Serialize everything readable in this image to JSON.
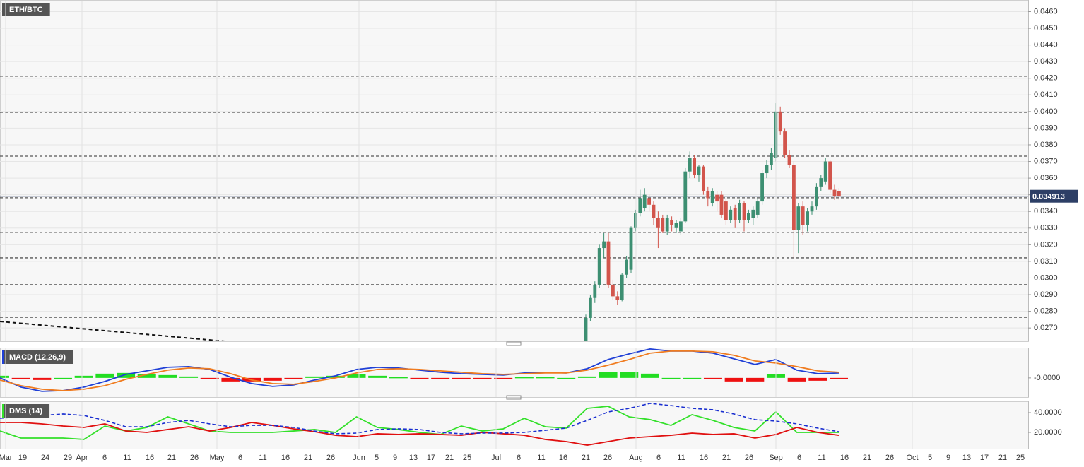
{
  "chart_data": [
    {
      "type": "candlestick",
      "title": "ETH/BTC",
      "up_color": "#3d8f72",
      "down_color": "#d2554c",
      "candles": [
        [
          0.0258,
          0.0278,
          0.0256,
          0.0276
        ],
        [
          0.0276,
          0.029,
          0.0274,
          0.0288
        ],
        [
          0.0288,
          0.0298,
          0.0285,
          0.0296
        ],
        [
          0.0296,
          0.032,
          0.0294,
          0.0318
        ],
        [
          0.0318,
          0.0327,
          0.0312,
          0.0322
        ],
        [
          0.0322,
          0.0327,
          0.0294,
          0.0296
        ],
        [
          0.0296,
          0.0299,
          0.0287,
          0.0289
        ],
        [
          0.0289,
          0.0292,
          0.0284,
          0.0287
        ],
        [
          0.0287,
          0.0303,
          0.0286,
          0.0302
        ],
        [
          0.0302,
          0.0313,
          0.03,
          0.0311
        ],
        [
          0.0305,
          0.0331,
          0.0303,
          0.033
        ],
        [
          0.033,
          0.0341,
          0.0328,
          0.0339
        ],
        [
          0.0339,
          0.0353,
          0.0337,
          0.0348
        ],
        [
          0.0342,
          0.0354,
          0.034,
          0.035
        ],
        [
          0.0348,
          0.035,
          0.034,
          0.0344
        ],
        [
          0.0344,
          0.0346,
          0.0332,
          0.0336
        ],
        [
          0.0336,
          0.034,
          0.0318,
          0.033
        ],
        [
          0.0336,
          0.0338,
          0.0327,
          0.0328
        ],
        [
          0.0328,
          0.0338,
          0.0326,
          0.0336
        ],
        [
          0.0335,
          0.0337,
          0.0328,
          0.0332
        ],
        [
          0.033,
          0.0335,
          0.0327,
          0.0333
        ],
        [
          0.0328,
          0.0336,
          0.0326,
          0.0334
        ],
        [
          0.0334,
          0.0366,
          0.0333,
          0.0364
        ],
        [
          0.0364,
          0.0376,
          0.036,
          0.0372
        ],
        [
          0.0372,
          0.0374,
          0.036,
          0.0362
        ],
        [
          0.0362,
          0.0368,
          0.0358,
          0.0367
        ],
        [
          0.0367,
          0.0368,
          0.035,
          0.0352
        ],
        [
          0.0352,
          0.0355,
          0.0343,
          0.0348
        ],
        [
          0.0345,
          0.0354,
          0.0343,
          0.0352
        ],
        [
          0.035,
          0.0352,
          0.034,
          0.0346
        ],
        [
          0.035,
          0.0352,
          0.0336,
          0.0338
        ],
        [
          0.0346,
          0.0348,
          0.0332,
          0.0335
        ],
        [
          0.0335,
          0.0343,
          0.0333,
          0.0341
        ],
        [
          0.0342,
          0.0344,
          0.033,
          0.0335
        ],
        [
          0.0335,
          0.0347,
          0.0333,
          0.0345
        ],
        [
          0.0345,
          0.0346,
          0.0328,
          0.0335
        ],
        [
          0.0335,
          0.0341,
          0.0333,
          0.0339
        ],
        [
          0.0336,
          0.0343,
          0.0332,
          0.0341
        ],
        [
          0.0338,
          0.0348,
          0.0336,
          0.0346
        ],
        [
          0.0346,
          0.0365,
          0.0344,
          0.0363
        ],
        [
          0.0363,
          0.0371,
          0.036,
          0.0368
        ],
        [
          0.0368,
          0.0378,
          0.0365,
          0.0375
        ],
        [
          0.0372,
          0.0405,
          0.037,
          0.04
        ],
        [
          0.04,
          0.0403,
          0.0386,
          0.0388
        ],
        [
          0.0388,
          0.039,
          0.0372,
          0.0374
        ],
        [
          0.0374,
          0.0377,
          0.0366,
          0.0368
        ],
        [
          0.0368,
          0.037,
          0.0312,
          0.0329
        ],
        [
          0.0329,
          0.0345,
          0.0315,
          0.0343
        ],
        [
          0.0343,
          0.0346,
          0.0326,
          0.0332
        ],
        [
          0.0332,
          0.0342,
          0.0328,
          0.034
        ],
        [
          0.034,
          0.0346,
          0.0338,
          0.0343
        ],
        [
          0.0343,
          0.0357,
          0.0341,
          0.0355
        ],
        [
          0.0355,
          0.0362,
          0.0352,
          0.036
        ],
        [
          0.0358,
          0.0372,
          0.0356,
          0.037
        ],
        [
          0.037,
          0.0371,
          0.0351,
          0.0353
        ],
        [
          0.0353,
          0.0356,
          0.0347,
          0.0349
        ],
        [
          0.0352,
          0.0354,
          0.0347,
          0.0349
        ]
      ],
      "levels": [
        0.04212,
        0.03995,
        0.03732,
        0.03482,
        0.03274,
        0.03121,
        0.0296,
        0.02764
      ],
      "level_color": "#555555",
      "trend_line": [
        0.02739,
        0.0262
      ],
      "last_price": 0.034913,
      "last_price_color": "#2d3f66",
      "ylim": [
        0.0262,
        0.0467
      ],
      "yticks": [
        {
          "value": 0.046,
          "label": "0.0460"
        },
        {
          "value": 0.045,
          "label": "0.0450"
        },
        {
          "value": 0.044,
          "label": "0.0440"
        },
        {
          "value": 0.043,
          "label": "0.0430"
        },
        {
          "value": 0.042,
          "label": "0.0420"
        },
        {
          "value": 0.041,
          "label": "0.0410"
        },
        {
          "value": 0.04,
          "label": "0.0400"
        },
        {
          "value": 0.039,
          "label": "0.0390"
        },
        {
          "value": 0.038,
          "label": "0.0380"
        },
        {
          "value": 0.037,
          "label": "0.0370"
        },
        {
          "value": 0.036,
          "label": "0.0360"
        },
        {
          "value": 0.035,
          "label": "0.0350"
        },
        {
          "value": 0.034,
          "label": "0.0340"
        },
        {
          "value": 0.033,
          "label": "0.0330"
        },
        {
          "value": 0.032,
          "label": "0.0320"
        },
        {
          "value": 0.031,
          "label": "0.0310"
        },
        {
          "value": 0.03,
          "label": "0.0300"
        },
        {
          "value": 0.029,
          "label": "0.0290"
        },
        {
          "value": 0.028,
          "label": "0.0280"
        },
        {
          "value": 0.027,
          "label": "0.0270"
        }
      ],
      "grid": true
    },
    {
      "type": "line",
      "title": "MACD (12,26,9)",
      "title_accent": "#1f3fd6",
      "series": [
        {
          "color": "#1f3fd6",
          "values": [
            0,
            -0.000364,
            -0.000532,
            -0.000504,
            -0.000364,
            -0.00014,
            0.00014,
            0.00028,
            0.00042,
            0.000448,
            0.000336,
            2.8e-05,
            -0.000224,
            -0.000336,
            -0.00028,
            -8.4e-05,
            8.4e-05,
            0.000336,
            0.00042,
            0.000392,
            0.000308,
            0.000224,
            0.000168,
            0.00014,
            0.000112,
            0.000196,
            0.000224,
            0.000196,
            0.000364,
            0.000728,
            0.000952,
            0.001148,
            0.001064,
            0.001064,
            0.00098,
            0.000756,
            0.000532,
            0.000728,
            0.000308,
            0.000168,
            0.000196
          ]
        },
        {
          "color": "#f07c20",
          "values": [
            -8.4e-05,
            -0.000308,
            -0.000448,
            -0.000504,
            -0.000448,
            -0.000308,
            -5.6e-05,
            0.00014,
            0.000308,
            0.000392,
            0.000364,
            0.000168,
            -8.4e-05,
            -0.000224,
            -0.000252,
            -0.00014,
            0,
            0.000196,
            0.000336,
            0.000364,
            0.000336,
            0.00028,
            0.000224,
            0.000168,
            0.00014,
            0.000168,
            0.000196,
            0.000196,
            0.000308,
            0.000504,
            0.000728,
            0.00098,
            0.001064,
            0.001064,
            0.001036,
            0.000896,
            0.000672,
            0.000588,
            0.000448,
            0.00028,
            0.000224
          ]
        }
      ],
      "histogram": {
        "up_color": "#22dd22",
        "down_color": "#ee1111",
        "values": [
          8.4e-05,
          -5.6e-05,
          -8.4e-05,
          0,
          8.4e-05,
          0.000168,
          0.000196,
          0.00014,
          0.000112,
          5.6e-05,
          -2.8e-05,
          -0.00014,
          -0.00014,
          -0.000112,
          -2.8e-05,
          5.6e-05,
          8.4e-05,
          0.00014,
          8.4e-05,
          2.8e-05,
          -2.8e-05,
          -5.6e-05,
          -5.6e-05,
          -2.8e-05,
          -2.8e-05,
          2.8e-05,
          2.8e-05,
          0,
          5.6e-05,
          0.000224,
          0.000224,
          0.000168,
          0,
          0,
          -5.6e-05,
          -0.00014,
          -0.00014,
          0.00014,
          -0.00014,
          -0.000112,
          -2.8e-05
        ]
      },
      "ylim": [
        -0.00076,
        0.0012
      ],
      "yticks": [
        {
          "value": 0,
          "label": "-0.0000"
        }
      ],
      "grid": false
    },
    {
      "type": "line",
      "title": "DMS (14)",
      "title_accent": "#33e02a",
      "series": [
        {
          "color": "#33e02a",
          "values": [
            21.4,
            14.3,
            14.3,
            14.3,
            12.9,
            26.4,
            21.4,
            25.0,
            35.7,
            28.6,
            21.4,
            20.0,
            20.0,
            20.0,
            21.4,
            22.9,
            20.0,
            35.7,
            25.0,
            22.9,
            20.0,
            17.9,
            26.4,
            21.4,
            23.6,
            34.3,
            25.7,
            24.3,
            44.3,
            46.4,
            35.7,
            32.9,
            27.1,
            37.9,
            32.1,
            25.0,
            21.4,
            40.7,
            20.0,
            20.0,
            20.0
          ]
        },
        {
          "color": "#e01010",
          "values": [
            30.0,
            30.0,
            28.6,
            26.4,
            25.0,
            28.6,
            21.4,
            20.0,
            22.9,
            25.7,
            21.4,
            25.0,
            30.0,
            27.1,
            23.6,
            20.7,
            17.1,
            15.7,
            18.6,
            17.9,
            18.6,
            17.9,
            17.1,
            20.0,
            18.6,
            17.1,
            12.9,
            10.7,
            7.1,
            10.7,
            14.3,
            15.7,
            17.1,
            19.3,
            17.9,
            18.6,
            14.3,
            17.9,
            25.0,
            20.0,
            17.1
          ]
        },
        {
          "color": "#1a2fd0",
          "style": "dashed",
          "values": [
            34.3,
            35.7,
            37.1,
            38.6,
            37.1,
            32.1,
            25.7,
            25.7,
            30.0,
            32.1,
            28.6,
            25.7,
            27.1,
            27.1,
            25.0,
            21.4,
            18.6,
            19.3,
            22.9,
            23.6,
            22.9,
            20.0,
            18.6,
            19.3,
            19.3,
            20.0,
            22.1,
            24.3,
            32.1,
            40.7,
            44.3,
            49.3,
            47.1,
            44.3,
            42.9,
            38.6,
            32.9,
            31.4,
            28.6,
            24.3,
            20.7
          ]
        }
      ],
      "ylim": [
        3.57,
        51.43
      ],
      "yticks": [
        {
          "value": 40,
          "label": "40.0000"
        },
        {
          "value": 20,
          "label": "20.0000"
        }
      ],
      "grid": false,
      "x_labels": [
        "Mar",
        "19",
        "24",
        "29",
        "Apr",
        "6",
        "11",
        "16",
        "21",
        "26",
        "May",
        "6",
        "11",
        "16",
        "21",
        "26",
        "Jun",
        "5",
        "9",
        "13",
        "17",
        "21",
        "25",
        "Jul",
        "6",
        "11",
        "16",
        "21",
        "26",
        "Aug",
        "6",
        "11",
        "16",
        "21",
        "26",
        "Sep",
        "6",
        "11",
        "16",
        "21",
        "26",
        "Oct",
        "5",
        "9",
        "13",
        "17",
        "21",
        "25"
      ]
    }
  ]
}
